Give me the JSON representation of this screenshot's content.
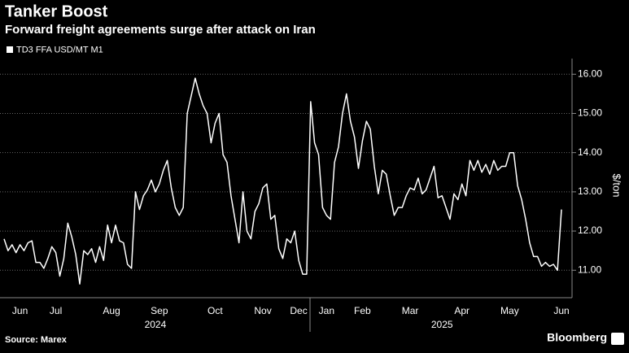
{
  "chart_data": {
    "type": "line",
    "title": "Tanker Boost",
    "subtitle": "Forward freight agreements surge after attack on Iran",
    "source": "Source: Marex",
    "brand": "Bloomberg",
    "y_axis_label": "$/ton",
    "categories": [
      null,
      null,
      null,
      null,
      "Jun",
      null,
      null,
      null,
      null,
      null,
      null,
      null,
      null,
      "Jul",
      null,
      null,
      null,
      null,
      null,
      null,
      null,
      null,
      null,
      null,
      null,
      null,
      null,
      "Aug",
      null,
      null,
      null,
      null,
      null,
      null,
      null,
      null,
      null,
      null,
      null,
      "Sep",
      null,
      null,
      null,
      null,
      null,
      null,
      null,
      null,
      null,
      null,
      null,
      null,
      null,
      "Oct",
      null,
      null,
      null,
      null,
      null,
      null,
      null,
      null,
      null,
      null,
      null,
      "Nov",
      null,
      null,
      null,
      null,
      null,
      null,
      null,
      null,
      "Dec",
      null,
      null,
      null,
      null,
      null,
      null,
      "Jan",
      null,
      null,
      null,
      null,
      null,
      null,
      null,
      null,
      "Feb",
      null,
      null,
      null,
      null,
      null,
      null,
      null,
      null,
      null,
      null,
      null,
      "Mar",
      null,
      null,
      null,
      null,
      null,
      null,
      null,
      null,
      null,
      null,
      null,
      null,
      "Apr",
      null,
      null,
      null,
      null,
      null,
      null,
      null,
      null,
      null,
      null,
      null,
      "May",
      null,
      null,
      null,
      null,
      null,
      null,
      null,
      null,
      null,
      null,
      null,
      null,
      "Jun"
    ],
    "years": [
      null,
      null,
      null,
      null,
      null,
      null,
      null,
      null,
      null,
      null,
      null,
      null,
      null,
      null,
      null,
      null,
      null,
      null,
      null,
      null,
      null,
      null,
      null,
      null,
      null,
      null,
      null,
      null,
      null,
      null,
      null,
      null,
      null,
      null,
      null,
      null,
      null,
      null,
      "2024",
      null,
      null,
      null,
      null,
      null,
      null,
      null,
      null,
      null,
      null,
      null,
      null,
      null,
      null,
      null,
      null,
      null,
      null,
      null,
      null,
      null,
      null,
      null,
      null,
      null,
      null,
      null,
      null,
      null,
      null,
      null,
      null,
      null,
      null,
      null,
      null,
      null,
      null,
      null,
      null,
      null,
      null,
      null,
      null,
      null,
      null,
      null,
      null,
      null,
      null,
      null,
      null,
      null,
      null,
      null,
      null,
      null,
      null,
      null,
      null,
      null,
      null,
      null,
      null,
      null,
      null,
      null,
      null,
      null,
      null,
      null,
      "2025",
      null,
      null,
      null,
      null,
      null,
      null,
      null,
      null,
      null,
      null,
      null,
      null,
      null,
      null,
      null,
      null,
      null,
      null,
      null,
      null,
      null,
      null,
      null,
      null,
      null,
      null,
      null,
      null,
      null,
      null
    ],
    "series": [
      {
        "name": "TD3 FFA USD/MT M1",
        "color": "#ffffff",
        "values": [
          11.8,
          11.5,
          11.65,
          11.45,
          11.65,
          11.5,
          11.7,
          11.75,
          11.2,
          11.2,
          11.05,
          11.3,
          11.6,
          11.45,
          10.85,
          11.3,
          12.2,
          11.85,
          11.4,
          10.65,
          11.5,
          11.4,
          11.55,
          11.2,
          11.6,
          11.25,
          12.15,
          11.7,
          12.15,
          11.75,
          11.7,
          11.15,
          11.05,
          13.0,
          12.55,
          12.9,
          13.05,
          13.3,
          13.0,
          13.2,
          13.55,
          13.8,
          13.1,
          12.6,
          12.4,
          12.6,
          15.0,
          15.45,
          15.9,
          15.5,
          15.2,
          15.0,
          14.25,
          14.75,
          15.0,
          13.95,
          13.75,
          12.9,
          12.3,
          11.7,
          13.0,
          12.0,
          11.8,
          12.5,
          12.7,
          13.1,
          13.2,
          12.3,
          12.4,
          11.55,
          11.3,
          11.8,
          11.7,
          12.0,
          11.25,
          10.9,
          10.9,
          15.3,
          14.25,
          13.95,
          12.6,
          12.4,
          12.3,
          13.75,
          14.15,
          15.0,
          15.5,
          14.8,
          14.4,
          13.6,
          14.3,
          14.8,
          14.6,
          13.65,
          12.95,
          13.55,
          13.45,
          12.9,
          12.4,
          12.6,
          12.6,
          12.9,
          13.1,
          13.05,
          13.35,
          12.95,
          13.05,
          13.35,
          13.65,
          12.85,
          12.9,
          12.6,
          12.3,
          12.95,
          12.8,
          13.2,
          12.9,
          13.8,
          13.55,
          13.8,
          13.5,
          13.7,
          13.45,
          13.8,
          13.55,
          13.65,
          13.65,
          14.0,
          14.0,
          13.15,
          12.8,
          12.3,
          11.7,
          11.35,
          11.35,
          11.1,
          11.2,
          11.1,
          11.15,
          11.0,
          12.55
        ]
      }
    ],
    "ylim": [
      10.3,
      16.4
    ],
    "yticks": [
      {
        "value": 11,
        "label": "11.00"
      },
      {
        "value": 12,
        "label": "12.00"
      },
      {
        "value": 13,
        "label": "13.00"
      },
      {
        "value": 14,
        "label": "14.00"
      },
      {
        "value": 15,
        "label": "15.00"
      },
      {
        "value": 16,
        "label": "16.00"
      }
    ],
    "grid": true
  }
}
